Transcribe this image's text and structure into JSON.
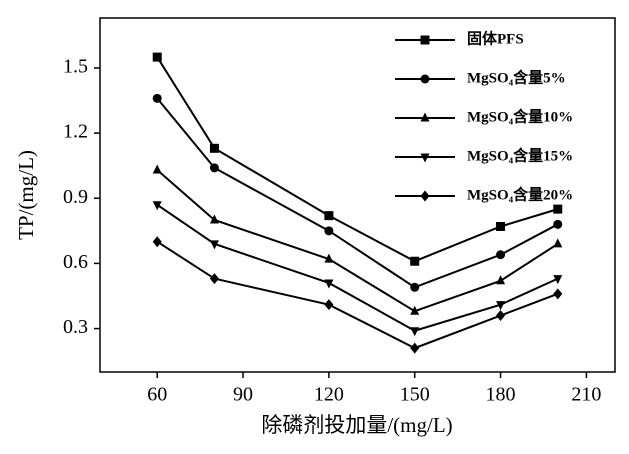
{
  "chart_data": {
    "type": "line",
    "x_label": "除磷剂投加量/(mg/L)",
    "y_label": "TP/(mg/L)",
    "x": [
      60,
      80,
      120,
      150,
      180,
      200
    ],
    "series": [
      {
        "name": "固体PFS",
        "color": "#000000",
        "marker": "square",
        "values": [
          1.55,
          1.13,
          0.82,
          0.61,
          0.77,
          0.85
        ]
      },
      {
        "name": "MgSO₄含量5%",
        "color": "#000000",
        "marker": "circle",
        "values": [
          1.36,
          1.04,
          0.75,
          0.49,
          0.64,
          0.78
        ]
      },
      {
        "name": "MgSO₄含量10%",
        "color": "#000000",
        "marker": "triangle-up",
        "values": [
          1.03,
          0.8,
          0.62,
          0.38,
          0.52,
          0.69
        ]
      },
      {
        "name": "MgSO₄含量15%",
        "color": "#000000",
        "marker": "triangle-down",
        "values": [
          0.87,
          0.69,
          0.51,
          0.29,
          0.41,
          0.53
        ]
      },
      {
        "name": "MgSO₄含量20%",
        "color": "#000000",
        "marker": "diamond",
        "values": [
          0.7,
          0.53,
          0.41,
          0.21,
          0.36,
          0.46
        ]
      }
    ],
    "xlim": [
      40,
      220
    ],
    "xticks": [
      60,
      90,
      120,
      150,
      180,
      210
    ],
    "ylim": [
      0.1,
      1.73
    ],
    "yticks": [
      {
        "value": 0.3,
        "label": "0.3"
      },
      {
        "value": 0.6,
        "label": "0.6"
      },
      {
        "value": 0.9,
        "label": "0.9"
      },
      {
        "value": 1.2,
        "label": "1.2"
      },
      {
        "value": 1.5,
        "label": "1.5"
      }
    ],
    "legend": "top-right"
  }
}
